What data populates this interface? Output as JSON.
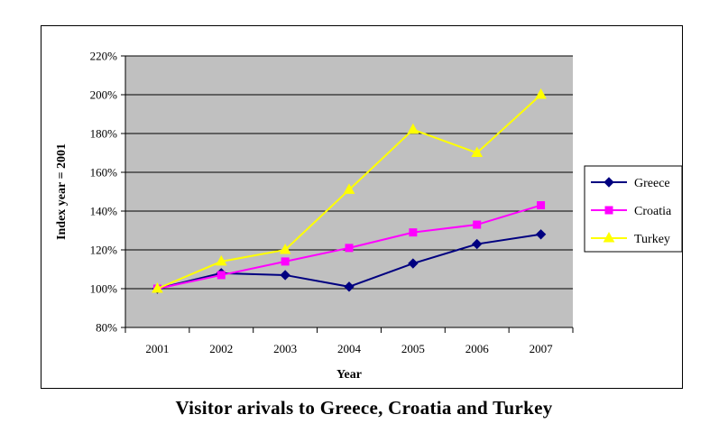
{
  "caption": "Visitor arivals to Greece, Croatia and Turkey",
  "chart_data": {
    "type": "line",
    "title": "",
    "xlabel": "Year",
    "ylabel": "Index year = 2001",
    "x": [
      "2001",
      "2002",
      "2003",
      "2004",
      "2005",
      "2006",
      "2007"
    ],
    "y_ticks": [
      "80%",
      "100%",
      "120%",
      "140%",
      "160%",
      "180%",
      "200%",
      "220%"
    ],
    "ylim": [
      80,
      220
    ],
    "y_unit": "%",
    "grid": true,
    "plot_background": "#c0c0c0",
    "legend_position": "right",
    "series": [
      {
        "name": "Greece",
        "color": "#000080",
        "marker": "diamond",
        "values": [
          100,
          108,
          107,
          101,
          113,
          123,
          128
        ]
      },
      {
        "name": "Croatia",
        "color": "#ff00ff",
        "marker": "square",
        "values": [
          100,
          107,
          114,
          121,
          129,
          133,
          143
        ]
      },
      {
        "name": "Turkey",
        "color": "#ffff00",
        "marker": "triangle",
        "values": [
          100,
          114,
          120,
          151,
          182,
          170,
          200
        ]
      }
    ]
  }
}
